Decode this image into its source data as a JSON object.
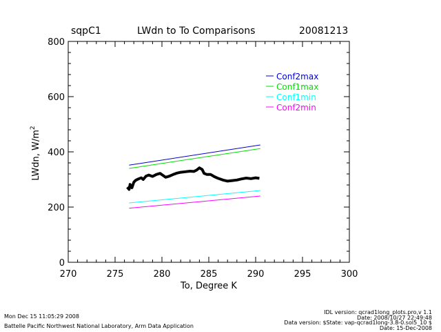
{
  "header": {
    "site": "sqpC1",
    "date": "20081213"
  },
  "chart_data": {
    "type": "line",
    "title": "LWdn to To Comparisons",
    "xlabel": "To, Degree K",
    "ylabel": "LWdn, W/m",
    "ylabel_exponent": "2",
    "xlim": [
      270,
      300
    ],
    "ylim": [
      0,
      800
    ],
    "xticks": [
      270,
      275,
      280,
      285,
      290,
      295,
      300
    ],
    "yticks": [
      0,
      200,
      400,
      600,
      800
    ],
    "legend_position": "upper-right",
    "series": [
      {
        "name": "Conf2max",
        "color": "#0000cc",
        "x": [
          276.5,
          290.5
        ],
        "y": [
          352,
          425
        ]
      },
      {
        "name": "Conf1max",
        "color": "#00dd00",
        "x": [
          276.5,
          290.5
        ],
        "y": [
          340,
          412
        ]
      },
      {
        "name": "Conf1min",
        "color": "#00ffff",
        "x": [
          276.5,
          290.5
        ],
        "y": [
          215,
          260
        ]
      },
      {
        "name": "Conf2min",
        "color": "#ff00ff",
        "x": [
          276.5,
          290.5
        ],
        "y": [
          196,
          240
        ]
      }
    ],
    "observed": {
      "name": "observed",
      "color": "#000000",
      "x": [
        276.3,
        276.5,
        276.6,
        276.8,
        277.0,
        277.2,
        277.5,
        277.8,
        278.0,
        278.3,
        278.6,
        279.0,
        279.4,
        279.8,
        280.1,
        280.4,
        280.8,
        281.2,
        281.6,
        282.0,
        282.5,
        283.0,
        283.4,
        283.7,
        284.0,
        284.3,
        284.5,
        284.8,
        285.2,
        285.6,
        286.0,
        286.5,
        287.0,
        287.5,
        288.0,
        288.5,
        289.0,
        289.5,
        290.0,
        290.4
      ],
      "y": [
        272,
        264,
        282,
        270,
        290,
        297,
        302,
        306,
        300,
        312,
        316,
        311,
        318,
        322,
        315,
        308,
        312,
        318,
        323,
        326,
        328,
        330,
        329,
        334,
        342,
        336,
        322,
        318,
        318,
        310,
        304,
        298,
        294,
        296,
        298,
        302,
        305,
        303,
        306,
        304
      ]
    }
  },
  "footer": {
    "timestamp": "Mon Dec 15 11:05:29 2008",
    "org": "Battelle Pacific Northwest National Laboratory, Arm Data Application",
    "idl_version": "IDL version: qcrad1long_plots.pro,v 1.1",
    "idl_date": "Date: 2008/10/27 22:49:48",
    "data_version": "Data version: $State: vap-qcrad1long-3.8-0.sol5_10 $",
    "data_date": "Date: 15-Dec-2008"
  }
}
